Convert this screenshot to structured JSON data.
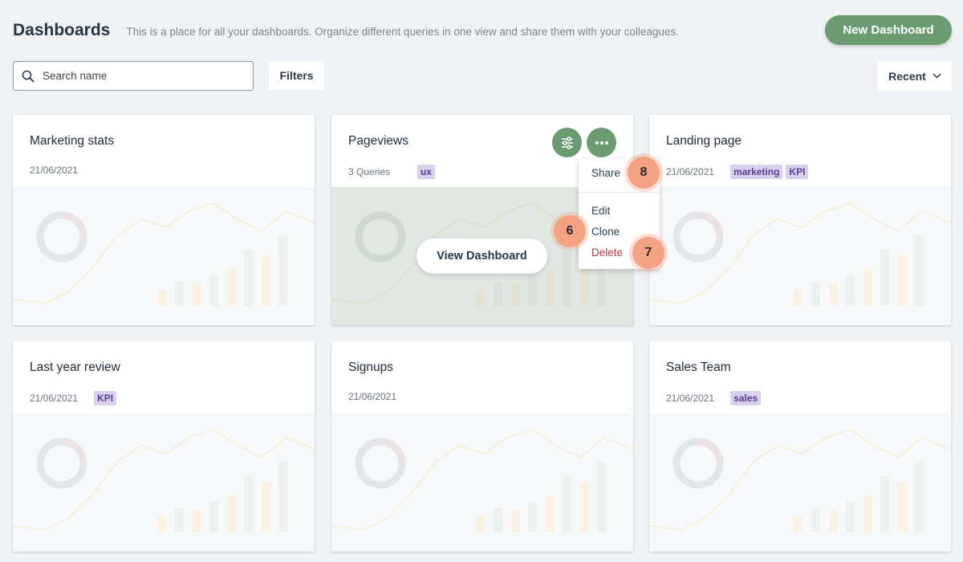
{
  "header": {
    "title": "Dashboards",
    "subtitle": "This is a place for all your dashboards. Organize different queries in one view and share them with your colleagues.",
    "new_dashboard_label": "New Dashboard"
  },
  "toolbar": {
    "search_placeholder": "Search name",
    "search_value": "",
    "filters_label": "Filters",
    "sort_label": "Recent"
  },
  "cards": [
    {
      "title": "Marketing stats",
      "meta": "21/06/2021",
      "tags": []
    },
    {
      "title": "Pageviews",
      "meta": "3 Queries",
      "tags": [
        "ux"
      ],
      "view_label": "View Dashboard"
    },
    {
      "title": "Landing page",
      "meta": "21/06/2021",
      "tags": [
        "marketing",
        "KPI"
      ]
    },
    {
      "title": "Last year review",
      "meta": "21/06/2021",
      "tags": [
        "KPI"
      ]
    },
    {
      "title": "Signups",
      "meta": "21/06/2021",
      "tags": []
    },
    {
      "title": "Sales Team",
      "meta": "21/06/2021",
      "tags": [
        "sales"
      ]
    }
  ],
  "menu": {
    "share": "Share",
    "edit": "Edit",
    "clone": "Clone",
    "delete": "Delete"
  },
  "badges": {
    "share": "8",
    "clone": "6",
    "delete": "7"
  },
  "colors": {
    "accent": "#6b9c71",
    "tag_bg": "#d9d0ee",
    "tag_text": "#5b3d97",
    "delete": "#b33a3a",
    "badge": "#f3a384"
  }
}
